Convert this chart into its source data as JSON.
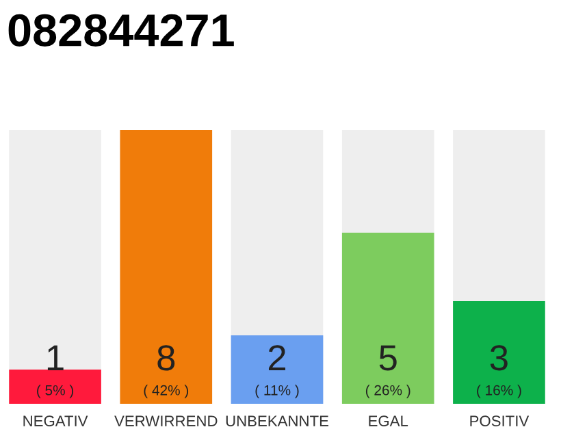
{
  "chart_data": {
    "type": "bar",
    "title": "082844271",
    "categories": [
      "NEGATIV",
      "VERWIRREND",
      "UNBEKANNTE",
      "EGAL",
      "POSITIV"
    ],
    "values": [
      1,
      8,
      2,
      5,
      3
    ],
    "colors": [
      "#ff1a3c",
      "#f07c0a",
      "#6a9ff0",
      "#7dcc5e",
      "#0db14b"
    ],
    "value_labels": [
      "1\n( 5% )",
      "8\n( 42% )",
      "2\n( 11% )",
      "5\n( 26% )",
      "3\n( 16% )"
    ],
    "grid": false,
    "legend": false
  }
}
